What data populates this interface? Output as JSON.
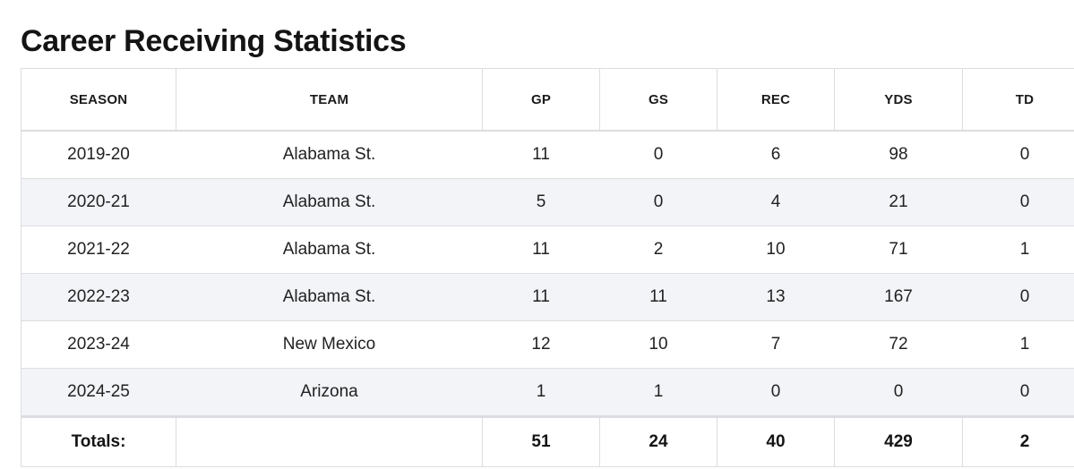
{
  "title": "Career Receiving Statistics",
  "columns": [
    "SEASON",
    "TEAM",
    "GP",
    "GS",
    "REC",
    "YDS",
    "TD"
  ],
  "rows": [
    [
      "2019-20",
      "Alabama St.",
      "11",
      "0",
      "6",
      "98",
      "0"
    ],
    [
      "2020-21",
      "Alabama St.",
      "5",
      "0",
      "4",
      "21",
      "0"
    ],
    [
      "2021-22",
      "Alabama St.",
      "11",
      "2",
      "10",
      "71",
      "1"
    ],
    [
      "2022-23",
      "Alabama St.",
      "11",
      "11",
      "13",
      "167",
      "0"
    ],
    [
      "2023-24",
      "New Mexico",
      "12",
      "10",
      "7",
      "72",
      "1"
    ],
    [
      "2024-25",
      "Arizona",
      "1",
      "1",
      "0",
      "0",
      "0"
    ]
  ],
  "totals": [
    "Totals:",
    "",
    "51",
    "24",
    "40",
    "429",
    "2"
  ]
}
